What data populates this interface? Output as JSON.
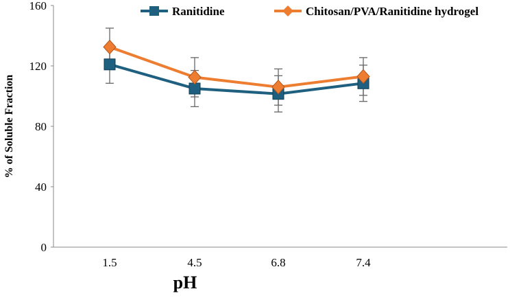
{
  "chart_data": {
    "type": "line",
    "title": "",
    "xlabel": "pH",
    "ylabel": "% of Soluble Fraction",
    "categories": [
      "1.5",
      "4.5",
      "6.8",
      "7.4"
    ],
    "ylim": [
      0,
      160
    ],
    "yticks": [
      0,
      40,
      80,
      120,
      160
    ],
    "grid": false,
    "legend_position": "top",
    "series": [
      {
        "name": "Ranitidine",
        "color": "#1f5f7f",
        "marker": "square",
        "values": [
          121,
          105,
          101.5,
          108.5
        ],
        "errors": [
          12.5,
          12,
          12,
          12
        ]
      },
      {
        "name": "Chitosan/PVA/Ranitidine hydrogel",
        "color": "#ed7d31",
        "marker": "diamond",
        "values": [
          132.5,
          112.5,
          106,
          113
        ],
        "errors": [
          12.5,
          13,
          12,
          12.5
        ]
      }
    ]
  }
}
